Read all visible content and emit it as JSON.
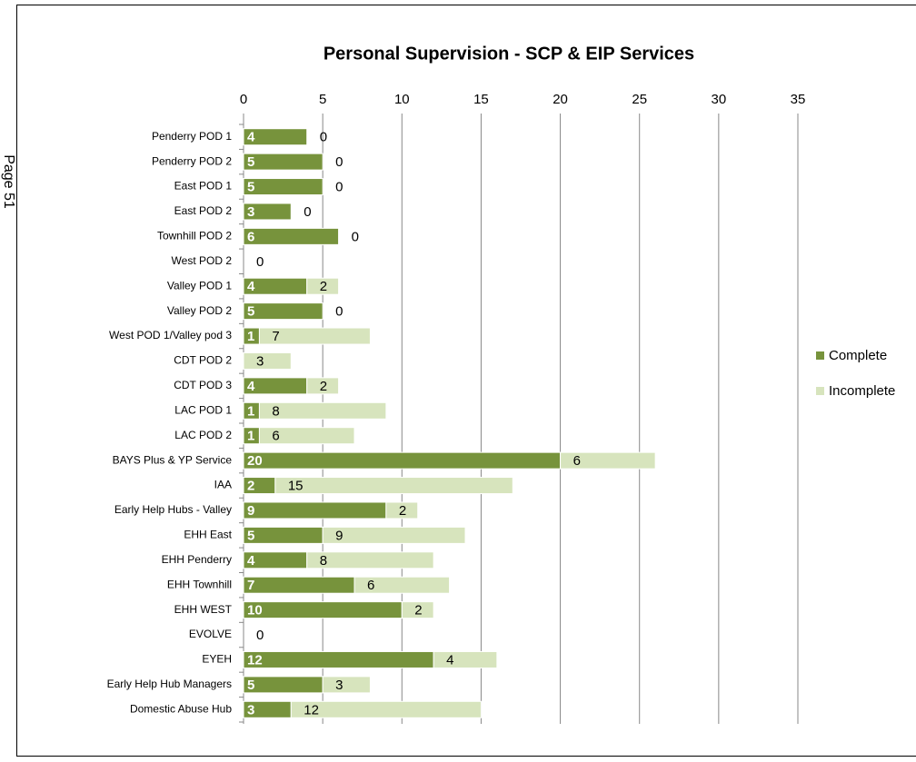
{
  "page_label": "Page 51",
  "chart_data": {
    "type": "stacked_barh",
    "title": "Personal Supervision -  SCP & EIP Services",
    "categories": [
      "Penderry POD 1",
      "Penderry POD 2",
      "East POD 1",
      "East POD 2",
      "Townhill POD 2",
      "West POD 2",
      "Valley POD 1",
      "Valley POD 2",
      "West POD 1/Valley pod 3",
      "CDT POD 2",
      "CDT POD 3",
      "LAC POD 1",
      "LAC POD 2",
      "BAYS Plus & YP Service",
      "IAA",
      "Early Help Hubs - Valley",
      "EHH East",
      "EHH Penderry",
      "EHH Townhill",
      "EHH WEST",
      "EVOLVE",
      "EYEH",
      "Early Help Hub Managers",
      "Domestic Abuse Hub"
    ],
    "series": [
      {
        "name": "Complete",
        "color": "#77933c",
        "values": [
          4,
          5,
          5,
          3,
          6,
          0,
          4,
          5,
          1,
          0,
          4,
          1,
          1,
          20,
          2,
          9,
          5,
          4,
          7,
          10,
          0,
          12,
          5,
          3
        ]
      },
      {
        "name": "Incomplete",
        "color": "#d7e4bd",
        "values": [
          0,
          0,
          0,
          0,
          0,
          0,
          2,
          0,
          7,
          3,
          2,
          8,
          6,
          6,
          15,
          2,
          9,
          8,
          6,
          2,
          0,
          4,
          3,
          12
        ]
      }
    ],
    "xlim": [
      0,
      35
    ],
    "xticks": [
      0,
      5,
      10,
      15,
      20,
      25,
      30,
      35
    ],
    "grid": true,
    "legend": "right"
  }
}
